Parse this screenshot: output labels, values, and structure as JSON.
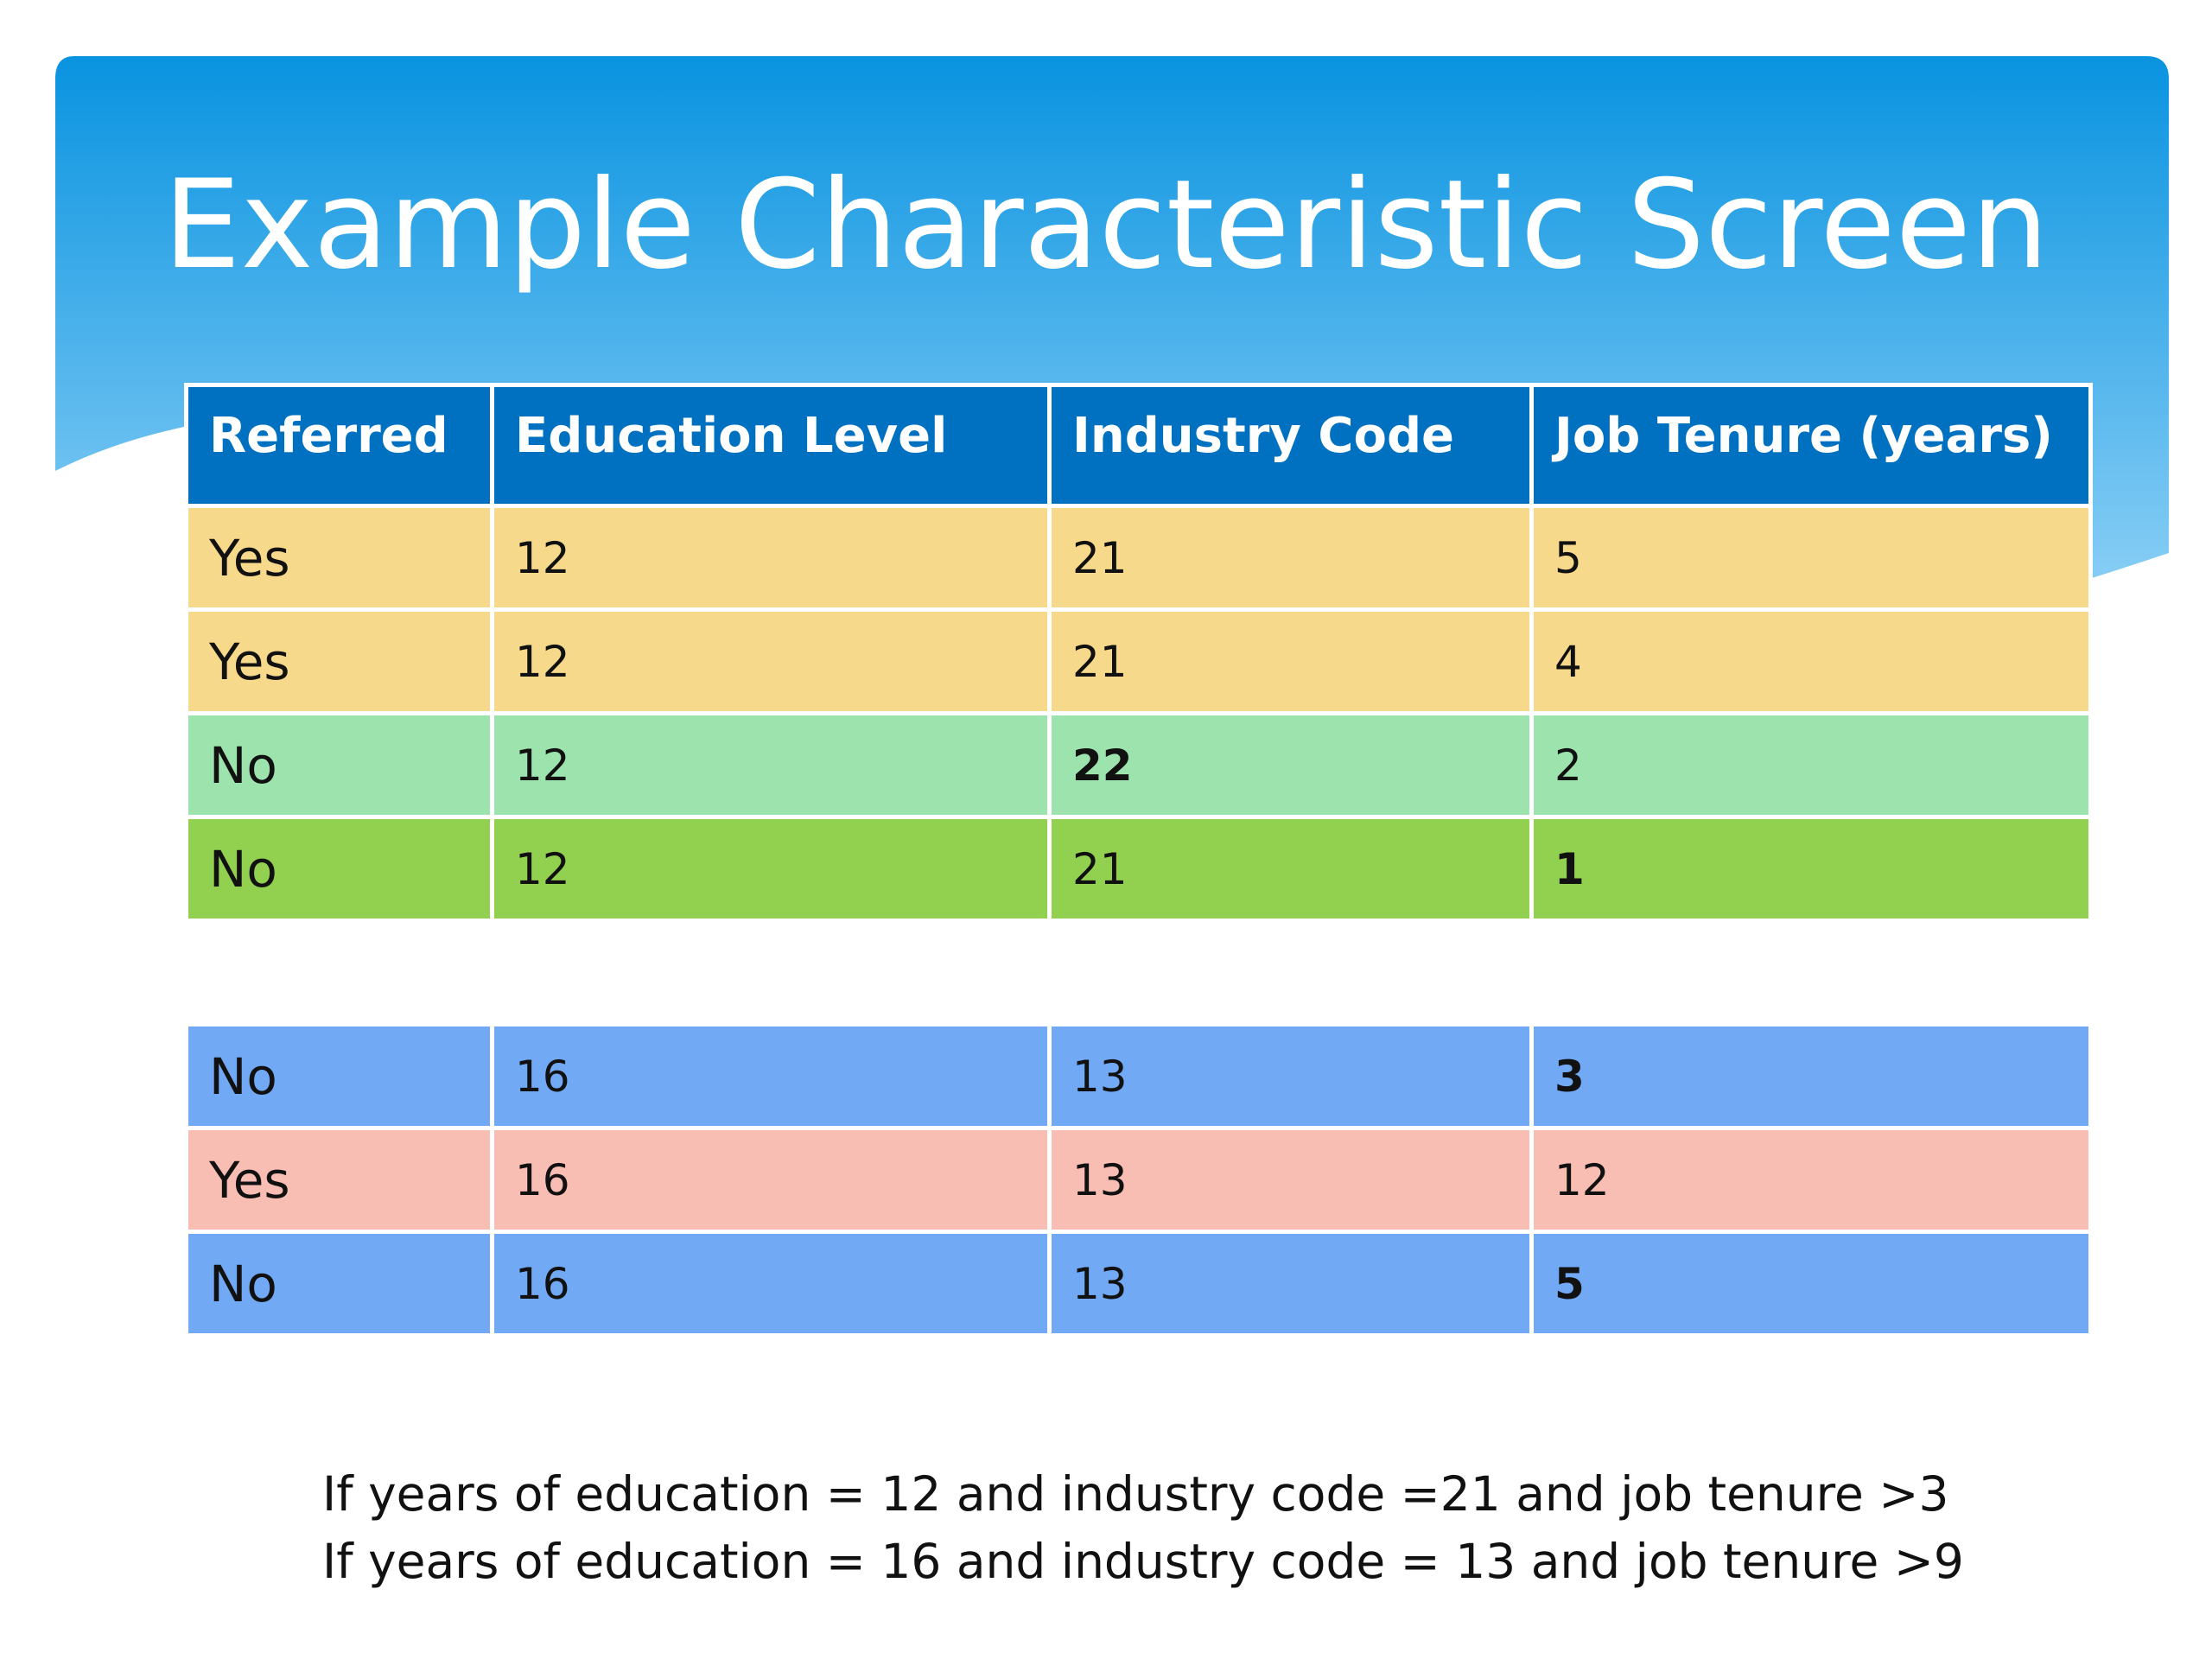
{
  "slide": {
    "title": "Example Characteristic Screen",
    "colors": {
      "banner_top": "#0993e0",
      "banner_bottom": "#86cdf5",
      "header": "#0070c0"
    }
  },
  "table": {
    "columns": [
      "Referred",
      "Education Level",
      "Industry Code",
      "Job Tenure (years)"
    ],
    "group1": [
      {
        "cells": [
          "Yes",
          "12",
          "21",
          "5"
        ],
        "color": "#f7d98b",
        "bold": []
      },
      {
        "cells": [
          "Yes",
          "12",
          "21",
          "4"
        ],
        "color": "#f7d98b",
        "bold": []
      },
      {
        "cells": [
          "No",
          "12",
          "22",
          "2"
        ],
        "color": "#9de3ae",
        "bold": [
          2
        ]
      },
      {
        "cells": [
          "No",
          "12",
          "21",
          "1"
        ],
        "color": "#92d050",
        "bold": [
          3
        ]
      }
    ],
    "group2": [
      {
        "cells": [
          "No",
          "16",
          "13",
          "3"
        ],
        "color": "#72a9f5",
        "bold": [
          3
        ]
      },
      {
        "cells": [
          "Yes",
          "16",
          "13",
          "12"
        ],
        "color": "#f8bdb3",
        "bold": []
      },
      {
        "cells": [
          "No",
          "16",
          "13",
          "5"
        ],
        "color": "#72a9f5",
        "bold": [
          3
        ]
      }
    ]
  },
  "footnote": {
    "line1": "If years of education = 12 and  industry code =21 and job tenure >3",
    "line2": "If years of education  = 16 and industry code = 13 and job tenure >9"
  }
}
